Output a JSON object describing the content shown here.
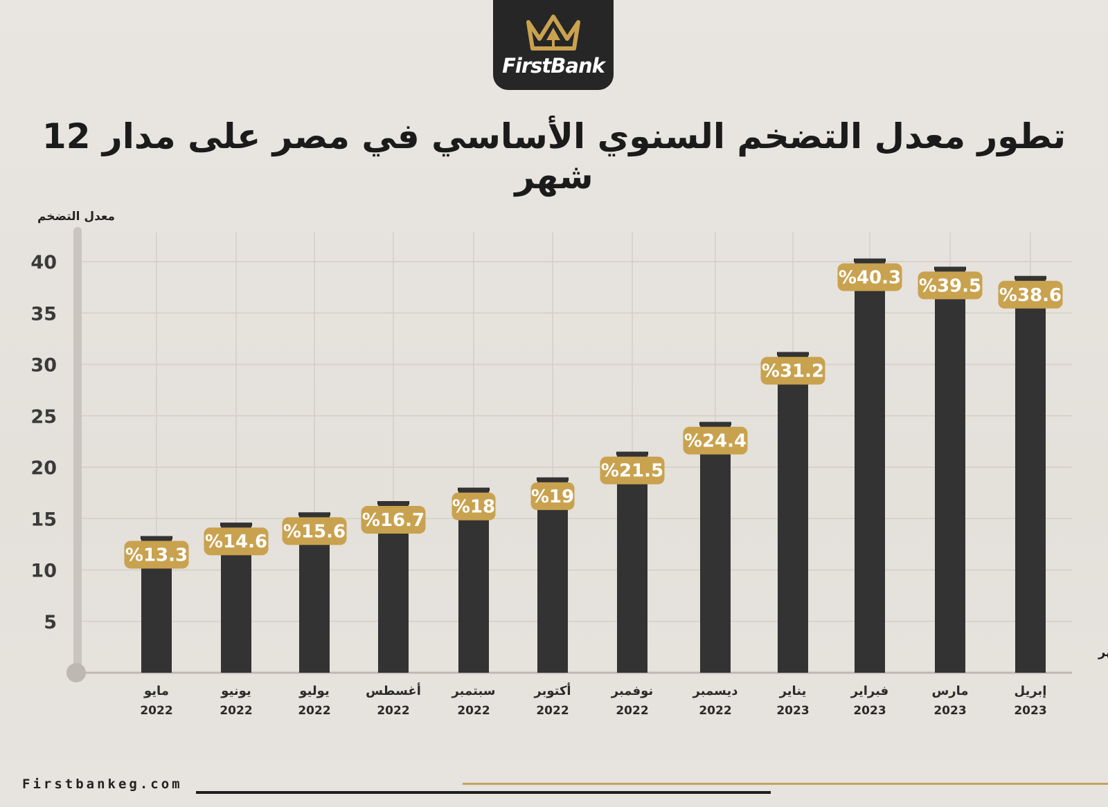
{
  "brand": {
    "name": "FirstBank"
  },
  "title": "تطور معدل التضخم السنوي الأساسي في مصر على مدار 12 شهر",
  "footer": {
    "website": "Firstbankeg.com"
  },
  "colors": {
    "bar": "#333333",
    "label_bg": "#c9a24f",
    "label_text": "#ffffff",
    "text": "#1b1b1b",
    "gold": "#c4a45e"
  },
  "chart_data": {
    "type": "bar",
    "ylabel": "معدل التضخم",
    "xlabel": "الشهر",
    "ylim": [
      0,
      40
    ],
    "yticks": [
      5,
      10,
      15,
      20,
      25,
      30,
      35,
      40
    ],
    "grid": true,
    "categories": [
      {
        "month": "مايو",
        "year": "2022"
      },
      {
        "month": "يونيو",
        "year": "2022"
      },
      {
        "month": "يوليو",
        "year": "2022"
      },
      {
        "month": "أغسطس",
        "year": "2022"
      },
      {
        "month": "سبتمبر",
        "year": "2022"
      },
      {
        "month": "أكتوبر",
        "year": "2022"
      },
      {
        "month": "نوفمبر",
        "year": "2022"
      },
      {
        "month": "ديسمبر",
        "year": "2022"
      },
      {
        "month": "يناير",
        "year": "2023"
      },
      {
        "month": "فبراير",
        "year": "2023"
      },
      {
        "month": "مارس",
        "year": "2023"
      },
      {
        "month": "إبريل",
        "year": "2023"
      }
    ],
    "values": [
      13.3,
      14.6,
      15.6,
      16.7,
      18,
      19,
      21.5,
      24.4,
      31.2,
      40.3,
      39.5,
      38.6
    ],
    "value_labels": [
      "%13.3",
      "%14.6",
      "%15.6",
      "%16.7",
      "%18",
      "%19",
      "%21.5",
      "%24.4",
      "%31.2",
      "%40.3",
      "%39.5",
      "%38.6"
    ]
  }
}
